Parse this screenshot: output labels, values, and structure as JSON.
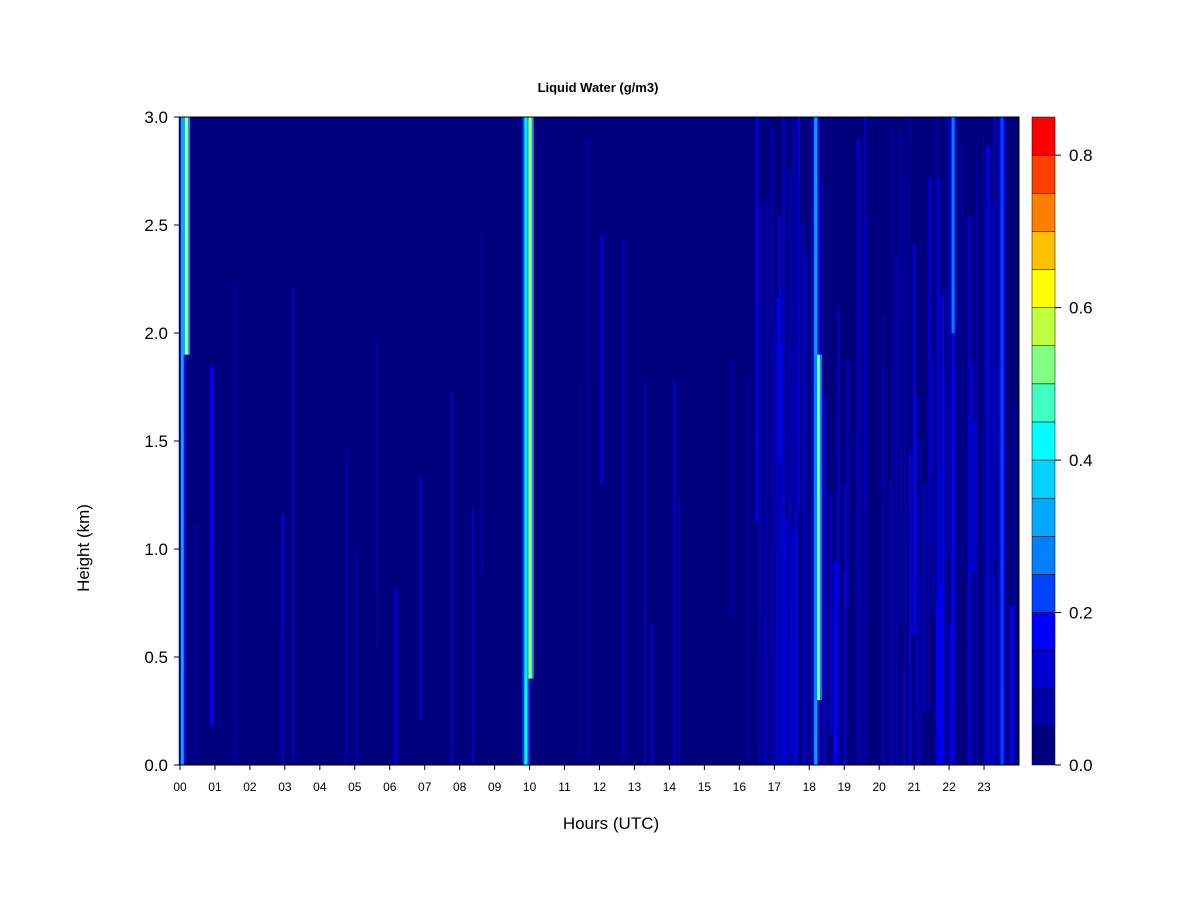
{
  "chart_data": {
    "type": "heatmap",
    "title": "Liquid Water (g/m3)",
    "xlabel": "Hours (UTC)",
    "ylabel": "Height (km)",
    "xlim": [
      0,
      24
    ],
    "ylim": [
      0,
      3.0
    ],
    "x_ticks": [
      "00",
      "01",
      "02",
      "03",
      "04",
      "05",
      "06",
      "07",
      "08",
      "09",
      "10",
      "11",
      "12",
      "13",
      "14",
      "15",
      "16",
      "17",
      "18",
      "19",
      "20",
      "21",
      "22",
      "23"
    ],
    "y_ticks": [
      "0.0",
      "0.5",
      "1.0",
      "1.5",
      "2.0",
      "2.5",
      "3.0"
    ],
    "colorbar": {
      "range": [
        0.0,
        0.85
      ],
      "step": 0.05,
      "ticks": [
        "0.0",
        "0.2",
        "0.4",
        "0.6",
        "0.8"
      ],
      "colors": [
        "#00007F",
        "#0000AA",
        "#0000D4",
        "#0000FF",
        "#0040FF",
        "#0080FF",
        "#00AAFF",
        "#00D4FF",
        "#00FFFF",
        "#40FFC0",
        "#80FF80",
        "#C0FF40",
        "#FFFF00",
        "#FFC000",
        "#FF8000",
        "#FF4000",
        "#FF0000",
        "#C00000",
        "#800000"
      ]
    },
    "features": [
      {
        "hour": 0.05,
        "bottom": 0.0,
        "top": 3.0,
        "value": 0.35
      },
      {
        "hour": 0.17,
        "bottom": 1.9,
        "top": 3.0,
        "value": 0.55
      },
      {
        "hour": 9.88,
        "bottom": 0.0,
        "top": 3.0,
        "value": 0.4
      },
      {
        "hour": 10.0,
        "bottom": 0.4,
        "top": 3.0,
        "value": 0.55
      },
      {
        "hour": 18.17,
        "bottom": 0.0,
        "top": 3.0,
        "value": 0.35
      },
      {
        "hour": 18.25,
        "bottom": 0.3,
        "top": 1.9,
        "value": 0.5
      },
      {
        "hour": 22.1,
        "bottom": 2.0,
        "top": 3.0,
        "value": 0.25
      },
      {
        "hour": 23.5,
        "bottom": 0.0,
        "top": 3.0,
        "value": 0.2
      }
    ]
  }
}
